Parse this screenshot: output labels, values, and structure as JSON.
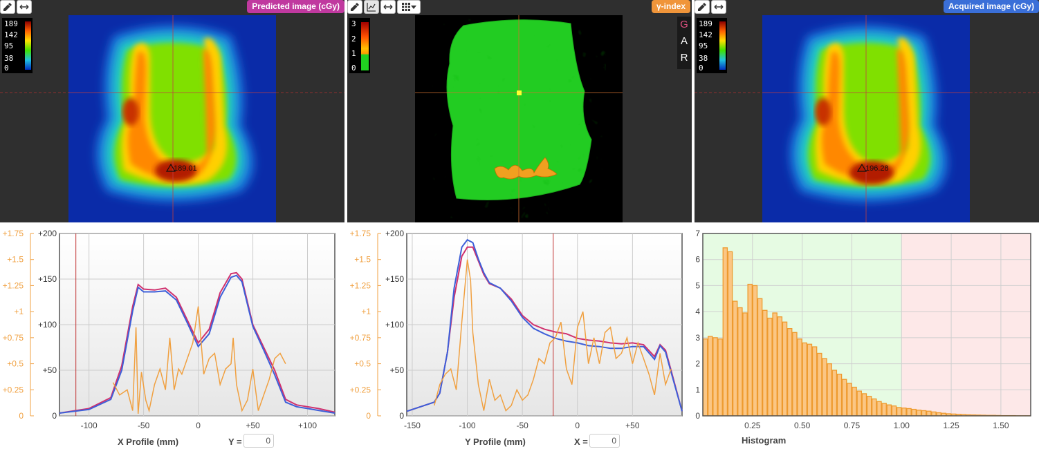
{
  "panels": {
    "predicted": {
      "badge": "Predicted image (cGy)",
      "badge_color": "#c0399f",
      "legend": [
        "189",
        "142",
        "95",
        "38",
        "0"
      ],
      "marker_value": "189.01"
    },
    "gamma": {
      "badge": "γ-index",
      "badge_color": "#f0953a",
      "legend": [
        "3",
        "2",
        "1",
        "0"
      ],
      "gar": [
        "G",
        "A",
        "R"
      ]
    },
    "acquired": {
      "badge": "Acquired image (cGy)",
      "badge_color": "#3a6fd8",
      "legend": [
        "189",
        "142",
        "95",
        "38",
        "0"
      ],
      "marker_value": "196.28"
    }
  },
  "toolbar": {
    "left": [
      "eyedropper-icon",
      "line-horizontal-icon"
    ],
    "middle": [
      "eyedropper-icon",
      "chart-line-icon",
      "line-horizontal-icon",
      "grid-icon",
      "caret-down-icon"
    ],
    "right": [
      "eyedropper-icon",
      "line-horizontal-icon"
    ]
  },
  "x_profile": {
    "label": "X Profile (mm)",
    "coord_label": "Y =",
    "coord_value": "0",
    "chart_data": {
      "type": "line",
      "xticks": [
        "-100",
        "-50",
        "0",
        "+50",
        "+100"
      ],
      "yticks_left": [
        "+1.75",
        "+1.5",
        "+1.25",
        "+1",
        "+0.75",
        "+0.5",
        "+0.25",
        "0"
      ],
      "yticks_right": [
        "+200",
        "+150",
        "+100",
        "+50",
        "0"
      ],
      "xlim": [
        -127,
        125
      ],
      "ylim": [
        0,
        200
      ],
      "ylim_gamma": [
        0,
        1.75
      ],
      "marker_x": -112,
      "series": [
        {
          "color": "#d0316e",
          "x": [
            -127,
            -100,
            -80,
            -70,
            -60,
            -55,
            -50,
            -40,
            -30,
            -20,
            -10,
            0,
            10,
            20,
            30,
            35,
            40,
            50,
            60,
            70,
            80,
            90,
            100,
            110,
            125
          ],
          "y": [
            3,
            8,
            20,
            55,
            120,
            144,
            139,
            138,
            140,
            130,
            105,
            80,
            95,
            135,
            156,
            157,
            150,
            100,
            75,
            50,
            18,
            12,
            10,
            8,
            4
          ]
        },
        {
          "color": "#3d5fd9",
          "x": [
            -127,
            -100,
            -80,
            -70,
            -60,
            -55,
            -50,
            -40,
            -30,
            -20,
            -10,
            0,
            10,
            20,
            30,
            35,
            40,
            50,
            60,
            70,
            80,
            90,
            100,
            110,
            125
          ],
          "y": [
            3,
            7,
            18,
            50,
            115,
            141,
            136,
            136,
            137,
            127,
            102,
            76,
            90,
            130,
            152,
            154,
            147,
            98,
            72,
            45,
            15,
            10,
            8,
            6,
            3
          ]
        },
        {
          "color": "#f0a040",
          "x": [
            -78,
            -72,
            -65,
            -60,
            -57,
            -55,
            -52,
            -48,
            -45,
            -40,
            -35,
            -30,
            -26,
            -22,
            -18,
            -15,
            -10,
            -5,
            0,
            5,
            10,
            15,
            20,
            25,
            30,
            32,
            35,
            40,
            45,
            50,
            55,
            60,
            65,
            70,
            75,
            80
          ],
          "y": [
            0.32,
            0.2,
            0.25,
            0.05,
            0.85,
            0.02,
            0.42,
            0.15,
            0.05,
            0.3,
            0.45,
            0.25,
            0.75,
            0.25,
            0.45,
            0.4,
            0.55,
            0.7,
            1.05,
            0.4,
            0.55,
            0.6,
            0.3,
            0.45,
            0.5,
            0.75,
            0.3,
            0.05,
            0.15,
            0.45,
            0.05,
            0.2,
            0.35,
            0.55,
            0.6,
            0.5
          ]
        }
      ]
    }
  },
  "y_profile": {
    "label": "Y Profile (mm)",
    "coord_label": "X =",
    "coord_value": "0",
    "chart_data": {
      "type": "line",
      "xticks": [
        "-150",
        "-100",
        "-50",
        "0",
        "+50"
      ],
      "yticks_left": [
        "+1.75",
        "+1.5",
        "+1.25",
        "+1",
        "+0.75",
        "+0.5",
        "+0.25",
        "0"
      ],
      "yticks_right": [
        "+200",
        "+150",
        "+100",
        "+50",
        "0"
      ],
      "xlim": [
        -155,
        95
      ],
      "ylim": [
        0,
        200
      ],
      "ylim_gamma": [
        0,
        1.75
      ],
      "marker_x": -22,
      "series": [
        {
          "color": "#d0316e",
          "x": [
            -155,
            -130,
            -125,
            -118,
            -112,
            -105,
            -100,
            -95,
            -90,
            -85,
            -80,
            -70,
            -60,
            -50,
            -40,
            -30,
            -20,
            -10,
            0,
            10,
            20,
            30,
            40,
            50,
            60,
            70,
            75,
            80,
            85,
            95
          ],
          "y": [
            5,
            15,
            25,
            70,
            130,
            175,
            185,
            185,
            170,
            155,
            145,
            140,
            128,
            110,
            100,
            95,
            92,
            90,
            85,
            83,
            82,
            80,
            79,
            80,
            78,
            65,
            78,
            72,
            50,
            5
          ]
        },
        {
          "color": "#3d5fd9",
          "x": [
            -155,
            -130,
            -125,
            -118,
            -112,
            -105,
            -100,
            -95,
            -90,
            -85,
            -80,
            -70,
            -60,
            -50,
            -40,
            -30,
            -20,
            -10,
            0,
            10,
            20,
            30,
            40,
            50,
            60,
            70,
            75,
            80,
            85,
            95
          ],
          "y": [
            5,
            15,
            25,
            70,
            140,
            185,
            193,
            190,
            172,
            157,
            146,
            140,
            126,
            108,
            96,
            90,
            85,
            82,
            80,
            77,
            76,
            74,
            74,
            76,
            76,
            62,
            77,
            70,
            48,
            5
          ]
        },
        {
          "color": "#f0a040",
          "x": [
            -130,
            -125,
            -120,
            -115,
            -110,
            -105,
            -100,
            -97,
            -95,
            -90,
            -85,
            -80,
            -75,
            -70,
            -65,
            -60,
            -55,
            -50,
            -45,
            -40,
            -35,
            -30,
            -25,
            -20,
            -15,
            -10,
            -5,
            0,
            5,
            10,
            15,
            20,
            25,
            30,
            35,
            40,
            45,
            50,
            55,
            60,
            65,
            70,
            75,
            80,
            85
          ],
          "y": [
            0.1,
            0.3,
            0.4,
            0.45,
            0.25,
            0.9,
            1.5,
            1.3,
            0.8,
            0.3,
            0.05,
            0.35,
            0.15,
            0.2,
            0.05,
            0.1,
            0.25,
            0.15,
            0.2,
            0.35,
            0.55,
            0.5,
            0.7,
            0.75,
            0.9,
            0.45,
            0.3,
            0.85,
            1.0,
            0.5,
            0.75,
            0.5,
            0.8,
            0.85,
            0.55,
            0.6,
            0.75,
            0.5,
            0.7,
            0.55,
            0.4,
            0.2,
            0.6,
            0.3,
            0.45
          ]
        }
      ]
    }
  },
  "histogram": {
    "label": "Histogram",
    "chart_data": {
      "type": "bar",
      "xticks": [
        "0.25",
        "0.50",
        "0.75",
        "1.00",
        "1.25",
        "1.50"
      ],
      "yticks": [
        "7",
        "6",
        "5",
        "4",
        "3",
        "2",
        "1",
        "0"
      ],
      "xlim": [
        0,
        1.65
      ],
      "ylim": [
        0,
        7
      ],
      "threshold": 1.0,
      "bin_width": 0.025,
      "values": [
        2.95,
        3.05,
        3.0,
        2.95,
        6.45,
        6.3,
        4.4,
        4.15,
        3.95,
        5.05,
        5.0,
        4.5,
        4.05,
        3.75,
        3.95,
        3.8,
        3.6,
        3.35,
        3.2,
        2.95,
        2.8,
        2.75,
        2.65,
        2.4,
        2.2,
        2.0,
        1.75,
        1.6,
        1.4,
        1.25,
        1.1,
        0.95,
        0.85,
        0.75,
        0.65,
        0.55,
        0.48,
        0.42,
        0.38,
        0.32,
        0.3,
        0.28,
        0.25,
        0.22,
        0.2,
        0.18,
        0.15,
        0.12,
        0.1,
        0.08,
        0.07,
        0.06,
        0.05,
        0.04,
        0.035,
        0.03,
        0.025,
        0.02,
        0.02,
        0.015,
        0.01,
        0.01,
        0.01,
        0.005,
        0.005,
        0.005
      ]
    }
  }
}
